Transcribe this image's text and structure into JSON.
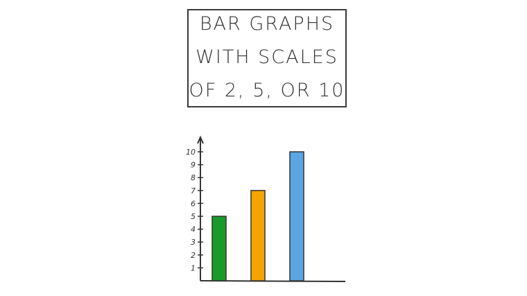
{
  "title_lines": [
    "BAR GRAPHS",
    "WITH SCALES",
    "OF 2, 5, OR 10"
  ],
  "chart_data": {
    "type": "bar",
    "categories": [
      "",
      "",
      ""
    ],
    "values": [
      5,
      7,
      10
    ],
    "colors": [
      "#1a9a2a",
      "#f5a500",
      "#5aa5e3"
    ],
    "ylim": [
      0,
      10.5
    ],
    "yticks": [
      1,
      2,
      3,
      4,
      5,
      6,
      7,
      8,
      9,
      10
    ],
    "xlabel": "",
    "ylabel": "",
    "grid": false
  }
}
